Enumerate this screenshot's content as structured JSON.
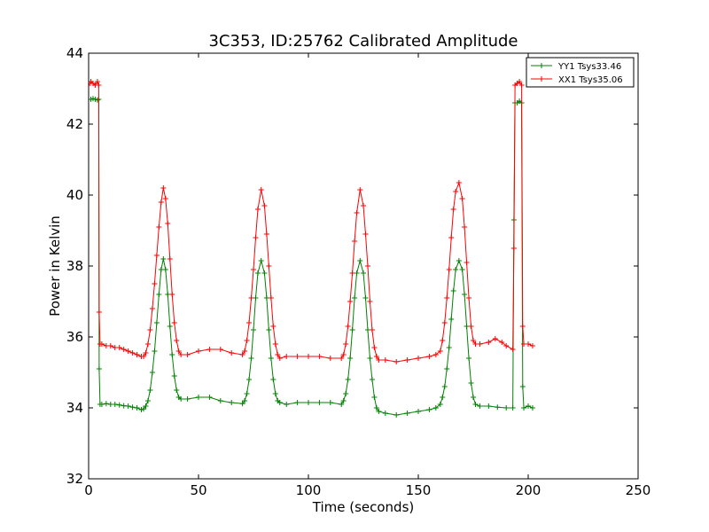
{
  "chart_data": {
    "type": "line",
    "title": "3C353, ID:25762 Calibrated Amplitude",
    "xlabel": "Time (seconds)",
    "ylabel": "Power in Kelvin",
    "xlim": [
      0,
      250
    ],
    "ylim": [
      32,
      44
    ],
    "xticks": [
      0,
      50,
      100,
      150,
      200,
      250
    ],
    "yticks": [
      32,
      34,
      36,
      38,
      40,
      42,
      44
    ],
    "grid": false,
    "legend_position": "top-right",
    "marker": "+",
    "series": [
      {
        "name": "YY1 Tsys33.46",
        "color": "#008000",
        "points": [
          [
            0,
            42.7
          ],
          [
            1,
            42.7
          ],
          [
            2,
            42.72
          ],
          [
            3,
            42.7
          ],
          [
            4,
            42.68
          ],
          [
            4.6,
            42.7
          ],
          [
            4.8,
            35.1
          ],
          [
            5.2,
            34.1
          ],
          [
            6,
            34.1
          ],
          [
            8,
            34.12
          ],
          [
            10,
            34.1
          ],
          [
            12,
            34.1
          ],
          [
            14,
            34.08
          ],
          [
            16,
            34.06
          ],
          [
            18,
            34.05
          ],
          [
            20,
            34.02
          ],
          [
            22,
            34.0
          ],
          [
            24,
            33.95
          ],
          [
            25,
            33.97
          ],
          [
            26,
            34.05
          ],
          [
            27,
            34.2
          ],
          [
            28,
            34.5
          ],
          [
            29,
            35.0
          ],
          [
            30,
            35.6
          ],
          [
            31,
            36.4
          ],
          [
            32,
            37.2
          ],
          [
            33,
            37.9
          ],
          [
            34,
            38.2
          ],
          [
            35,
            37.9
          ],
          [
            36,
            37.2
          ],
          [
            37,
            36.3
          ],
          [
            38,
            35.5
          ],
          [
            39,
            34.9
          ],
          [
            40,
            34.5
          ],
          [
            41,
            34.3
          ],
          [
            42,
            34.25
          ],
          [
            45,
            34.25
          ],
          [
            50,
            34.3
          ],
          [
            55,
            34.3
          ],
          [
            60,
            34.2
          ],
          [
            65,
            34.15
          ],
          [
            70,
            34.12
          ],
          [
            71,
            34.2
          ],
          [
            72,
            34.4
          ],
          [
            73,
            34.8
          ],
          [
            74,
            35.4
          ],
          [
            75,
            36.2
          ],
          [
            76,
            37.1
          ],
          [
            77,
            37.8
          ],
          [
            78.5,
            38.15
          ],
          [
            80,
            37.8
          ],
          [
            81,
            37.1
          ],
          [
            82,
            36.2
          ],
          [
            83,
            35.4
          ],
          [
            84,
            34.8
          ],
          [
            85,
            34.4
          ],
          [
            86,
            34.2
          ],
          [
            87,
            34.15
          ],
          [
            90,
            34.1
          ],
          [
            95,
            34.15
          ],
          [
            100,
            34.15
          ],
          [
            105,
            34.15
          ],
          [
            110,
            34.15
          ],
          [
            115,
            34.1
          ],
          [
            116,
            34.2
          ],
          [
            117,
            34.4
          ],
          [
            118,
            34.8
          ],
          [
            119,
            35.4
          ],
          [
            120,
            36.2
          ],
          [
            121,
            37.1
          ],
          [
            122,
            37.8
          ],
          [
            123.5,
            38.15
          ],
          [
            125,
            37.8
          ],
          [
            126,
            37.1
          ],
          [
            127,
            36.2
          ],
          [
            128,
            35.4
          ],
          [
            129,
            34.8
          ],
          [
            130,
            34.3
          ],
          [
            131,
            34.0
          ],
          [
            132,
            33.9
          ],
          [
            135,
            33.85
          ],
          [
            140,
            33.8
          ],
          [
            145,
            33.85
          ],
          [
            150,
            33.9
          ],
          [
            155,
            33.95
          ],
          [
            158,
            34.0
          ],
          [
            160,
            34.1
          ],
          [
            161,
            34.3
          ],
          [
            162,
            34.6
          ],
          [
            163,
            35.1
          ],
          [
            164,
            35.7
          ],
          [
            165,
            36.5
          ],
          [
            166,
            37.3
          ],
          [
            167,
            37.9
          ],
          [
            168.5,
            38.15
          ],
          [
            170,
            37.9
          ],
          [
            171,
            37.2
          ],
          [
            172,
            36.3
          ],
          [
            173,
            35.4
          ],
          [
            174,
            34.7
          ],
          [
            175,
            34.3
          ],
          [
            176,
            34.1
          ],
          [
            178,
            34.05
          ],
          [
            182,
            34.05
          ],
          [
            186,
            34.02
          ],
          [
            190,
            34.0
          ],
          [
            193,
            34.0
          ],
          [
            193.5,
            39.3
          ],
          [
            194,
            42.6
          ],
          [
            195,
            42.6
          ],
          [
            196,
            42.65
          ],
          [
            197,
            42.6
          ],
          [
            197.5,
            34.6
          ],
          [
            198,
            34.0
          ],
          [
            200,
            34.05
          ],
          [
            202,
            34.0
          ]
        ]
      },
      {
        "name": "XX1 Tsys35.06",
        "color": "#ff0000",
        "points": [
          [
            0,
            43.1
          ],
          [
            1,
            43.2
          ],
          [
            2,
            43.15
          ],
          [
            3,
            43.1
          ],
          [
            4,
            43.2
          ],
          [
            4.6,
            43.1
          ],
          [
            4.8,
            36.7
          ],
          [
            5.2,
            35.8
          ],
          [
            6,
            35.8
          ],
          [
            8,
            35.75
          ],
          [
            10,
            35.75
          ],
          [
            12,
            35.7
          ],
          [
            14,
            35.7
          ],
          [
            16,
            35.65
          ],
          [
            18,
            35.6
          ],
          [
            20,
            35.55
          ],
          [
            22,
            35.5
          ],
          [
            24,
            35.45
          ],
          [
            25,
            35.45
          ],
          [
            26,
            35.55
          ],
          [
            27,
            35.8
          ],
          [
            28,
            36.2
          ],
          [
            29,
            36.8
          ],
          [
            30,
            37.5
          ],
          [
            31,
            38.3
          ],
          [
            32,
            39.1
          ],
          [
            33,
            39.8
          ],
          [
            34,
            40.2
          ],
          [
            35,
            39.9
          ],
          [
            36,
            39.2
          ],
          [
            37,
            38.2
          ],
          [
            38,
            37.2
          ],
          [
            39,
            36.4
          ],
          [
            40,
            35.9
          ],
          [
            41,
            35.6
          ],
          [
            42,
            35.5
          ],
          [
            45,
            35.5
          ],
          [
            50,
            35.6
          ],
          [
            55,
            35.65
          ],
          [
            60,
            35.65
          ],
          [
            65,
            35.55
          ],
          [
            70,
            35.5
          ],
          [
            71,
            35.6
          ],
          [
            72,
            35.9
          ],
          [
            73,
            36.4
          ],
          [
            74,
            37.1
          ],
          [
            75,
            37.9
          ],
          [
            76,
            38.8
          ],
          [
            77,
            39.6
          ],
          [
            78.5,
            40.15
          ],
          [
            80,
            39.7
          ],
          [
            81,
            38.9
          ],
          [
            82,
            38.0
          ],
          [
            83,
            37.1
          ],
          [
            84,
            36.3
          ],
          [
            85,
            35.8
          ],
          [
            86,
            35.5
          ],
          [
            87,
            35.4
          ],
          [
            90,
            35.45
          ],
          [
            95,
            35.45
          ],
          [
            100,
            35.45
          ],
          [
            105,
            35.45
          ],
          [
            110,
            35.4
          ],
          [
            115,
            35.4
          ],
          [
            116,
            35.5
          ],
          [
            117,
            35.8
          ],
          [
            118,
            36.3
          ],
          [
            119,
            37.0
          ],
          [
            120,
            37.8
          ],
          [
            121,
            38.7
          ],
          [
            122,
            39.5
          ],
          [
            123.5,
            40.15
          ],
          [
            125,
            39.7
          ],
          [
            126,
            38.9
          ],
          [
            127,
            38.0
          ],
          [
            128,
            37.0
          ],
          [
            129,
            36.2
          ],
          [
            130,
            35.7
          ],
          [
            131,
            35.45
          ],
          [
            132,
            35.35
          ],
          [
            135,
            35.35
          ],
          [
            140,
            35.3
          ],
          [
            145,
            35.35
          ],
          [
            150,
            35.4
          ],
          [
            155,
            35.45
          ],
          [
            158,
            35.5
          ],
          [
            160,
            35.6
          ],
          [
            161,
            35.9
          ],
          [
            162,
            36.4
          ],
          [
            163,
            37.1
          ],
          [
            164,
            37.9
          ],
          [
            165,
            38.8
          ],
          [
            166,
            39.6
          ],
          [
            167,
            40.1
          ],
          [
            168.5,
            40.35
          ],
          [
            170,
            39.9
          ],
          [
            171,
            39.1
          ],
          [
            172,
            38.1
          ],
          [
            173,
            37.1
          ],
          [
            174,
            36.3
          ],
          [
            175,
            35.9
          ],
          [
            176,
            35.8
          ],
          [
            178,
            35.8
          ],
          [
            182,
            35.85
          ],
          [
            185,
            35.95
          ],
          [
            188,
            35.85
          ],
          [
            190,
            35.75
          ],
          [
            193,
            35.65
          ],
          [
            193.5,
            38.5
          ],
          [
            194,
            43.1
          ],
          [
            195,
            43.15
          ],
          [
            196,
            43.2
          ],
          [
            197,
            43.1
          ],
          [
            197.5,
            36.3
          ],
          [
            198,
            35.8
          ],
          [
            200,
            35.8
          ],
          [
            202,
            35.75
          ]
        ]
      }
    ]
  }
}
